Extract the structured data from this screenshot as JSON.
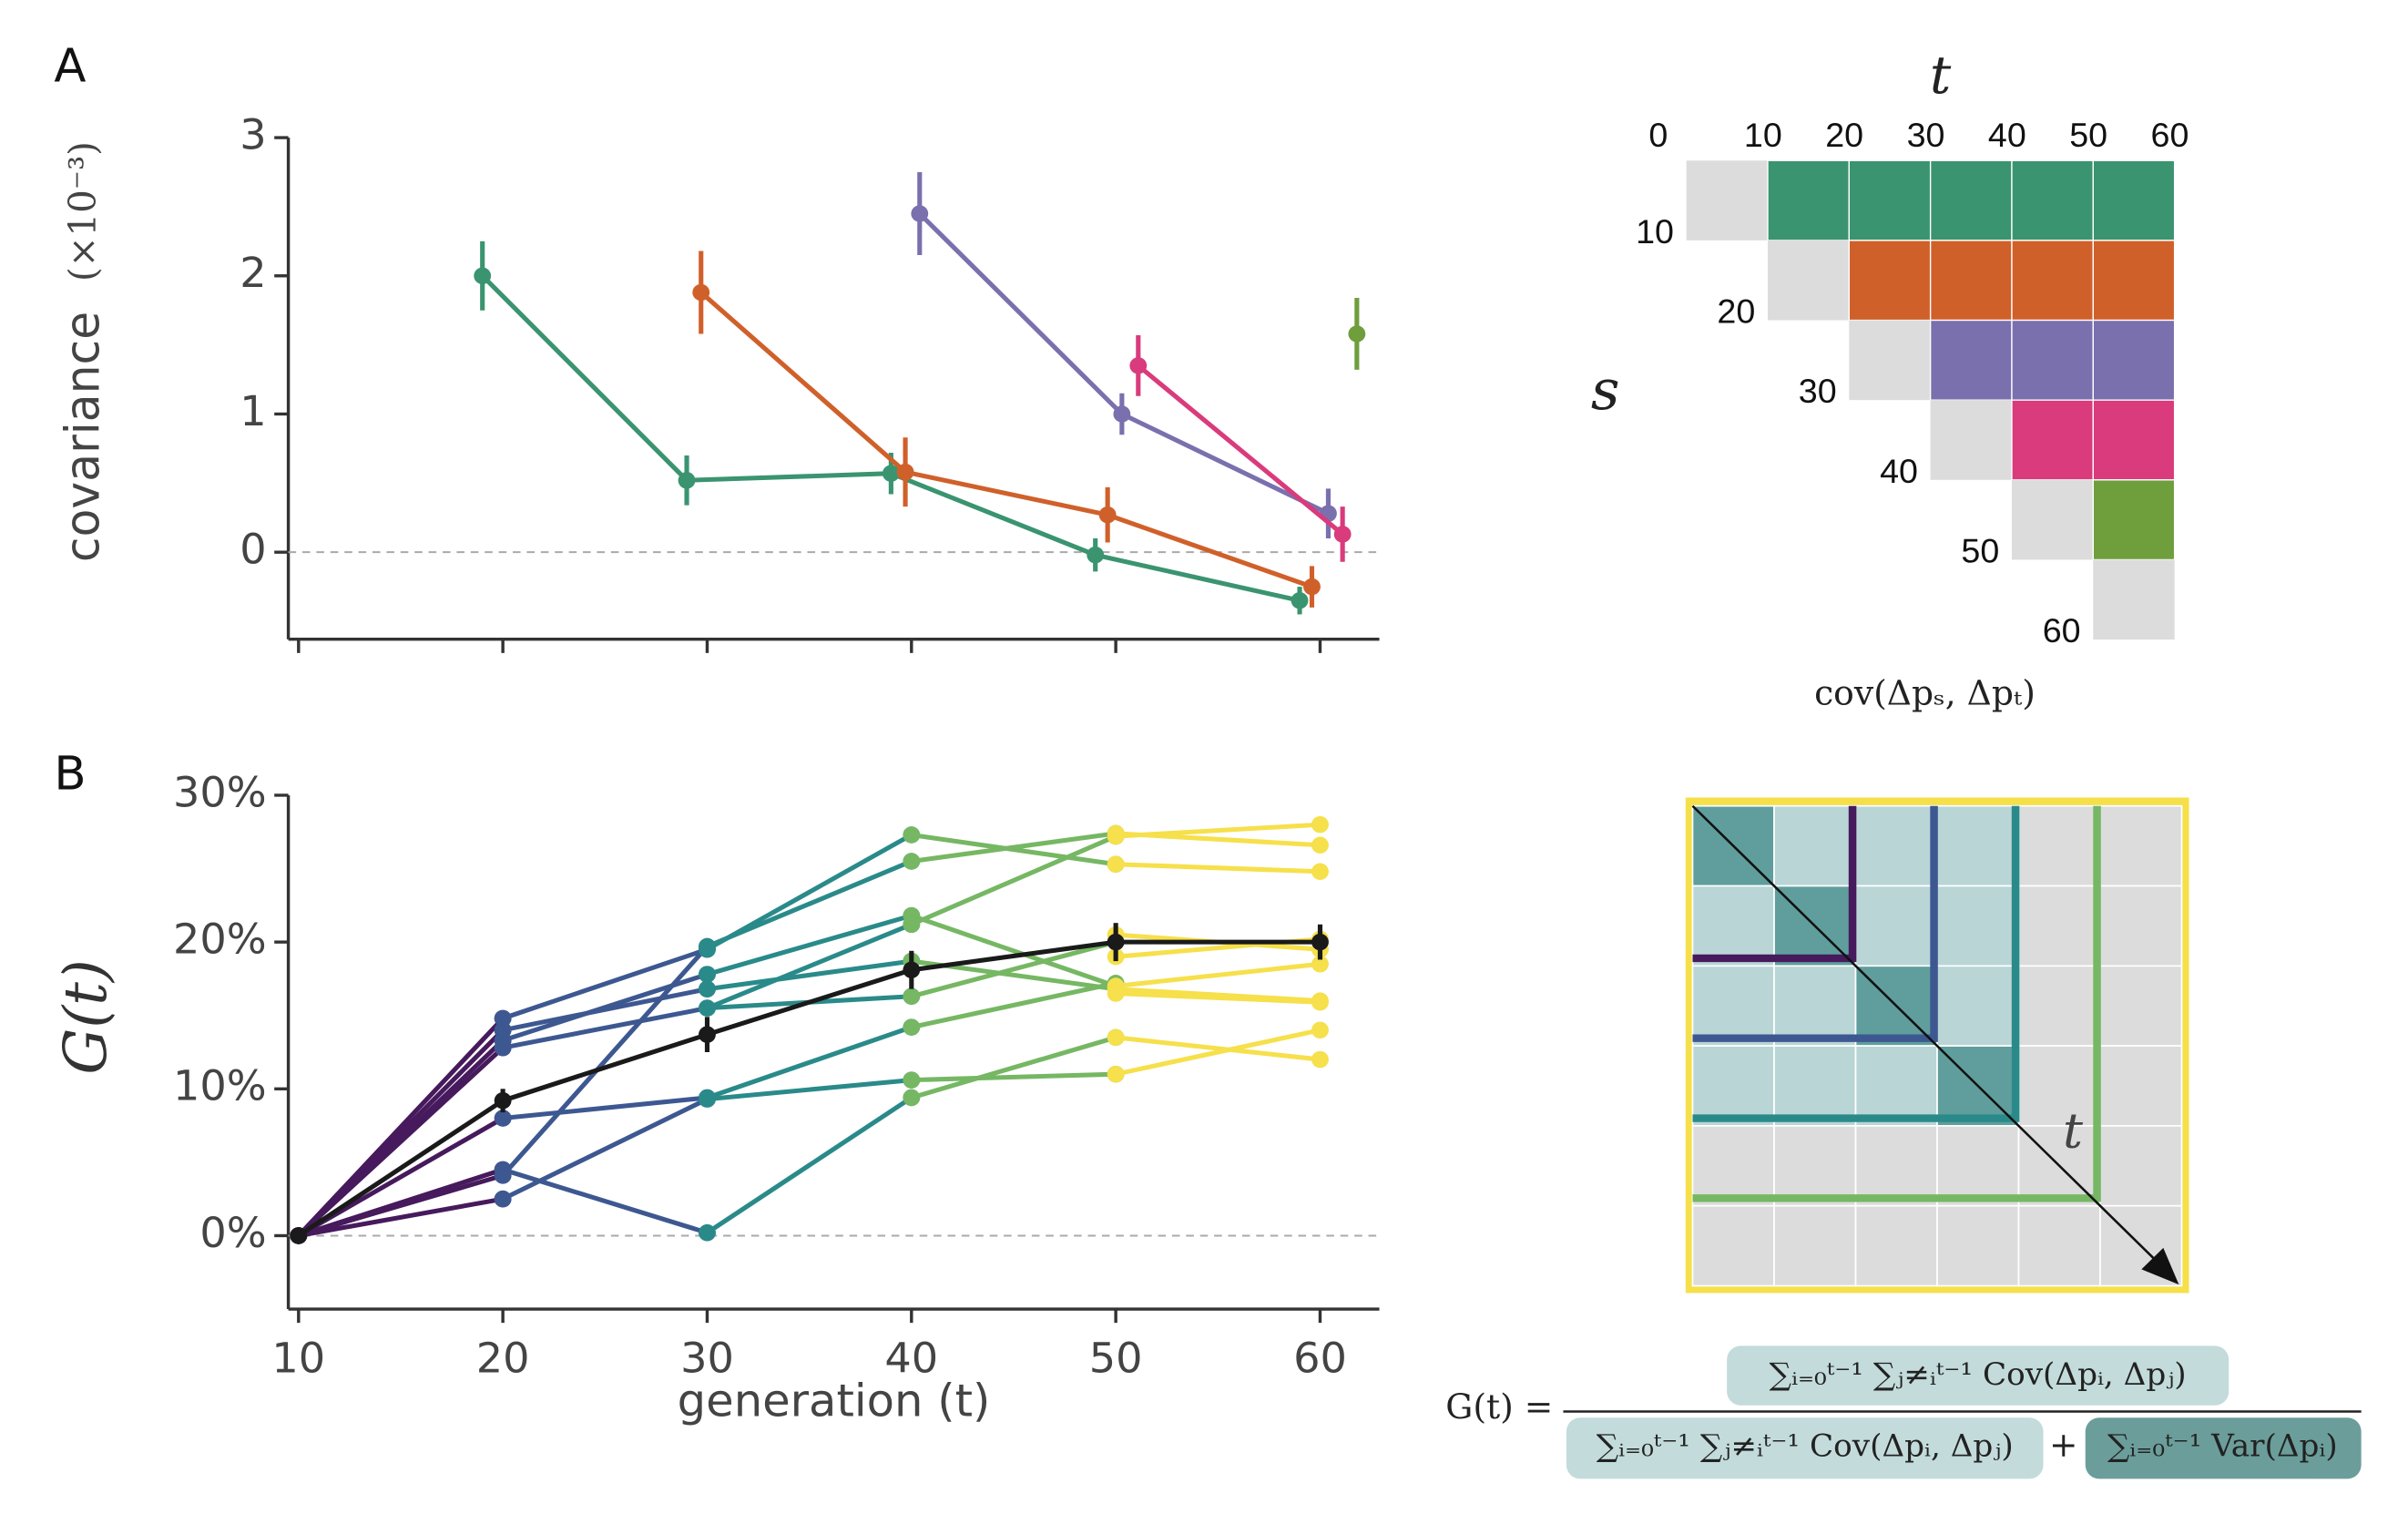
{
  "chart_data": [
    {
      "type": "line",
      "panel_label": "A",
      "y_label": "covariance",
      "y_unit": "(×10⁻³)",
      "xlim": [
        9.5,
        62.9
      ],
      "ylim": [
        -0.63,
        3
      ],
      "xticks": [
        10,
        20,
        30,
        40,
        50,
        60
      ],
      "yticks": [
        0,
        1,
        2,
        3
      ],
      "zero_line": true,
      "series": [
        {
          "color": "#3a9470",
          "x": [
            19,
            29,
            39,
            49,
            59
          ],
          "values": [
            2.0,
            0.52,
            0.57,
            -0.02,
            -0.35
          ],
          "errors": [
            0.25,
            0.18,
            0.15,
            0.12,
            0.1
          ]
        },
        {
          "color": "#d0602a",
          "x": [
            29.7,
            39.7,
            49.6,
            59.6
          ],
          "values": [
            1.88,
            0.58,
            0.27,
            -0.25
          ],
          "errors": [
            0.3,
            0.25,
            0.2,
            0.15
          ]
        },
        {
          "color": "#7a70ae",
          "x": [
            40.4,
            50.3,
            60.4
          ],
          "values": [
            2.45,
            1.0,
            0.28
          ],
          "errors": [
            0.3,
            0.15,
            0.18
          ]
        },
        {
          "color": "#d93b7c",
          "x": [
            51.1,
            61.1
          ],
          "values": [
            1.35,
            0.13
          ],
          "errors": [
            0.22,
            0.2
          ]
        },
        {
          "color": "#6f9e3d",
          "x": [
            61.8
          ],
          "values": [
            1.58
          ],
          "errors": [
            0.26
          ]
        }
      ]
    },
    {
      "type": "line",
      "panel_label": "B",
      "y_label": "G(t)",
      "x_label": "generation (t)",
      "xlim": [
        9.5,
        62.9
      ],
      "ylim": [
        -5,
        30
      ],
      "xticks": [
        10,
        20,
        30,
        40,
        50,
        60
      ],
      "yticks": [
        {
          "value": 0,
          "label": "0%"
        },
        {
          "value": 10,
          "label": "10%"
        },
        {
          "value": 20,
          "label": "20%"
        },
        {
          "value": 30,
          "label": "30%"
        }
      ],
      "zero_line": true,
      "x": [
        10,
        20,
        30,
        40,
        50,
        60
      ],
      "series": [
        {
          "color": "#461a5c",
          "values": [
            0,
            14.8,
            null,
            null,
            null,
            null
          ]
        },
        {
          "color": "#461a5c",
          "values": [
            0,
            14.0,
            null,
            null,
            null,
            null
          ]
        },
        {
          "color": "#461a5c",
          "values": [
            0,
            13.3,
            null,
            null,
            null,
            null
          ]
        },
        {
          "color": "#461a5c",
          "values": [
            0,
            12.8,
            null,
            null,
            null,
            null
          ]
        },
        {
          "color": "#461a5c",
          "values": [
            0,
            8.0,
            null,
            null,
            null,
            null
          ]
        },
        {
          "color": "#461a5c",
          "values": [
            0,
            4.5,
            null,
            null,
            null,
            null
          ]
        },
        {
          "color": "#461a5c",
          "values": [
            0,
            4.1,
            null,
            null,
            null,
            null
          ]
        },
        {
          "color": "#461a5c",
          "values": [
            0,
            2.5,
            null,
            null,
            null,
            null
          ]
        },
        {
          "color": "#3d5891",
          "values": [
            null,
            14.8,
            19.5,
            null,
            null,
            null
          ]
        },
        {
          "color": "#3d5891",
          "values": [
            null,
            13.3,
            17.8,
            null,
            null,
            null
          ]
        },
        {
          "color": "#3d5891",
          "values": [
            null,
            12.8,
            15.5,
            null,
            null,
            null
          ]
        },
        {
          "color": "#3d5891",
          "values": [
            null,
            14.0,
            16.8,
            null,
            null,
            null
          ]
        },
        {
          "color": "#3d5891",
          "values": [
            null,
            8.0,
            9.4,
            null,
            null,
            null
          ]
        },
        {
          "color": "#3d5891",
          "values": [
            null,
            4.5,
            0.2,
            null,
            null,
            null
          ]
        },
        {
          "color": "#3d5891",
          "values": [
            null,
            4.1,
            19.7,
            null,
            null,
            null
          ]
        },
        {
          "color": "#3d5891",
          "values": [
            null,
            2.5,
            9.3,
            null,
            null,
            null
          ]
        },
        {
          "color": "#2a8a8a",
          "values": [
            null,
            null,
            19.5,
            27.3,
            null,
            null
          ]
        },
        {
          "color": "#2a8a8a",
          "values": [
            null,
            null,
            19.7,
            25.5,
            null,
            null
          ]
        },
        {
          "color": "#2a8a8a",
          "values": [
            null,
            null,
            17.8,
            21.8,
            null,
            null
          ]
        },
        {
          "color": "#2a8a8a",
          "values": [
            null,
            null,
            15.5,
            21.2,
            null,
            null
          ]
        },
        {
          "color": "#2a8a8a",
          "values": [
            null,
            null,
            16.8,
            18.7,
            null,
            null
          ]
        },
        {
          "color": "#2a8a8a",
          "values": [
            null,
            null,
            15.5,
            16.3,
            null,
            null
          ]
        },
        {
          "color": "#2a8a8a",
          "values": [
            null,
            null,
            9.4,
            14.2,
            null,
            null
          ]
        },
        {
          "color": "#2a8a8a",
          "values": [
            null,
            null,
            9.3,
            10.6,
            null,
            null
          ]
        },
        {
          "color": "#2a8a8a",
          "values": [
            null,
            null,
            0.2,
            9.4,
            null,
            null
          ]
        },
        {
          "color": "#76b763",
          "values": [
            null,
            null,
            null,
            27.3,
            25.3,
            null
          ]
        },
        {
          "color": "#76b763",
          "values": [
            null,
            null,
            null,
            25.5,
            27.4,
            null
          ]
        },
        {
          "color": "#76b763",
          "values": [
            null,
            null,
            null,
            21.2,
            27.2,
            null
          ]
        },
        {
          "color": "#76b763",
          "values": [
            null,
            null,
            null,
            21.8,
            17.0,
            null
          ]
        },
        {
          "color": "#76b763",
          "values": [
            null,
            null,
            null,
            18.7,
            16.8,
            null
          ]
        },
        {
          "color": "#76b763",
          "values": [
            null,
            null,
            null,
            16.3,
            20.0,
            null
          ]
        },
        {
          "color": "#76b763",
          "values": [
            null,
            null,
            null,
            14.2,
            17.2,
            null
          ]
        },
        {
          "color": "#76b763",
          "values": [
            null,
            null,
            null,
            10.6,
            11.0,
            null
          ]
        },
        {
          "color": "#76b763",
          "values": [
            null,
            null,
            null,
            9.4,
            13.5,
            null
          ]
        },
        {
          "color": "#f6e04b",
          "values": [
            null,
            null,
            null,
            null,
            27.2,
            28.0
          ]
        },
        {
          "color": "#f6e04b",
          "values": [
            null,
            null,
            null,
            null,
            27.4,
            26.6
          ]
        },
        {
          "color": "#f6e04b",
          "values": [
            null,
            null,
            null,
            null,
            25.3,
            24.8
          ]
        },
        {
          "color": "#f6e04b",
          "values": [
            null,
            null,
            null,
            null,
            20.5,
            19.5
          ]
        },
        {
          "color": "#f6e04b",
          "values": [
            null,
            null,
            null,
            null,
            19.0,
            20.2
          ]
        },
        {
          "color": "#f6e04b",
          "values": [
            null,
            null,
            null,
            null,
            17.0,
            18.5
          ]
        },
        {
          "color": "#f6e04b",
          "values": [
            null,
            null,
            null,
            null,
            16.8,
            16.0
          ]
        },
        {
          "color": "#f6e04b",
          "values": [
            null,
            null,
            null,
            null,
            16.5,
            15.9
          ]
        },
        {
          "color": "#f6e04b",
          "values": [
            null,
            null,
            null,
            null,
            13.5,
            12.0
          ]
        },
        {
          "color": "#f6e04b",
          "values": [
            null,
            null,
            null,
            null,
            11.0,
            14.0
          ]
        },
        {
          "color": "#1a1a1a",
          "values": [
            0,
            9.2,
            13.7,
            18.1,
            20.0,
            20.0
          ],
          "errors": [
            0,
            0.8,
            1.2,
            1.3,
            1.3,
            1.2
          ]
        }
      ]
    }
  ],
  "matrix": {
    "t_label": "t",
    "s_label": "s",
    "col_labels": [
      "0",
      "10",
      "20",
      "30",
      "40",
      "50",
      "60"
    ],
    "row_labels": [
      "10",
      "20",
      "30",
      "40",
      "50",
      "60"
    ],
    "caption": "cov(Δpₛ, Δpₜ)"
  },
  "diagram": {
    "t_label": "t"
  },
  "formula": {
    "lhs": "G(t) =",
    "numerator": "∑ᵢ₌₀ᵗ⁻¹ ∑ⱼ≠ᵢᵗ⁻¹ Cov(Δpᵢ, Δpⱼ)",
    "denominator_cov": "∑ᵢ₌₀ᵗ⁻¹ ∑ⱼ≠ᵢᵗ⁻¹ Cov(Δpᵢ, Δpⱼ)",
    "plus": "+",
    "denominator_var": "∑ᵢ₌₀ᵗ⁻¹ Var(Δpᵢ)"
  }
}
